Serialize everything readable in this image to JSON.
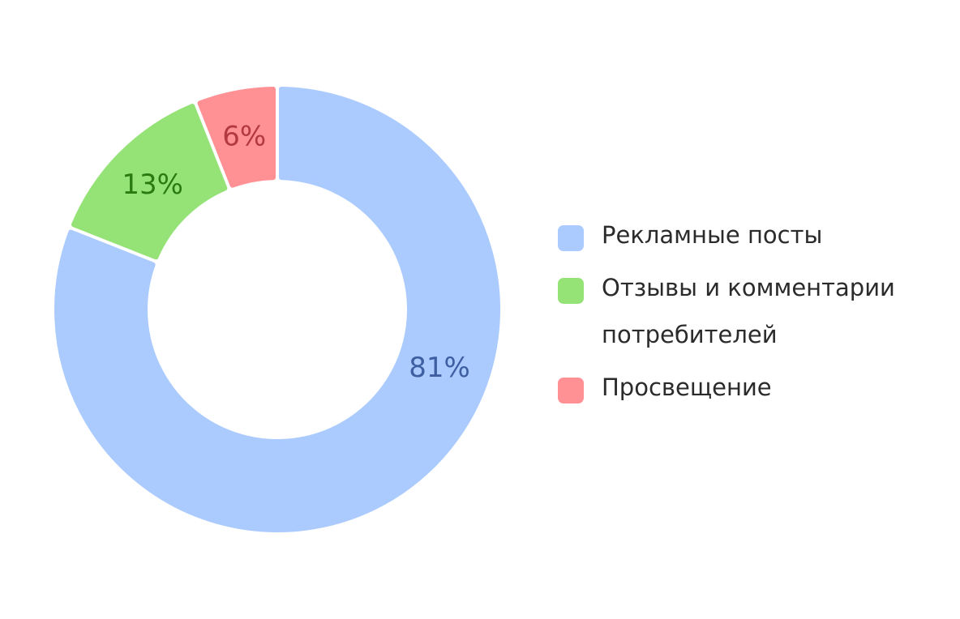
{
  "chart_data": {
    "type": "pie",
    "variant": "donut",
    "categories": [
      "Рекламные посты",
      "Отзывы и комментарии потребителей",
      "Просвещение"
    ],
    "values": [
      81,
      13,
      6
    ],
    "labels": [
      "81%",
      "13%",
      "6%"
    ],
    "colors": [
      "#abcbff",
      "#95e377",
      "#ff9195"
    ],
    "label_colors": [
      "#3d5ea1",
      "#2a7a12",
      "#b23a3e"
    ],
    "legend": "right",
    "title": ""
  }
}
